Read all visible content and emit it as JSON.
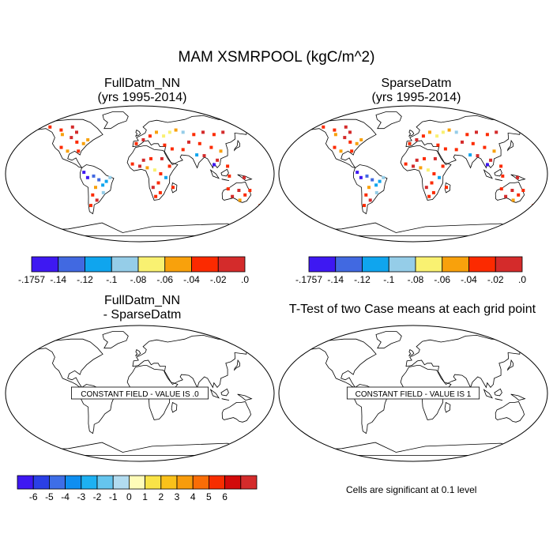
{
  "figure": {
    "title": "MAM XSMRPOOL (kgC/m^2)"
  },
  "panels": [
    {
      "title_line1": "FullDatm_NN",
      "title_line2": "(yrs 1995-2014)"
    },
    {
      "title_line1": "SparseDatm",
      "title_line2": "(yrs 1995-2014)"
    },
    {
      "title_line1": "FullDatm_NN",
      "title_line2": "- SparseDatm",
      "message": "CONSTANT FIELD - VALUE IS .0"
    },
    {
      "title_line1": "T-Test of two Case means at each grid point",
      "message": "CONSTANT FIELD - VALUE IS 1"
    }
  ],
  "colorbar_top": {
    "colors": [
      "#3e18f2",
      "#4169e1",
      "#0fa5ee",
      "#95cde8",
      "#f9f171",
      "#f8a10c",
      "#fc2a00",
      "#d42b2b"
    ],
    "labels": [
      "-.1757",
      "-.14",
      "-.12",
      "-.1",
      "-.08",
      "-.06",
      "-.04",
      "-.02",
      ".0"
    ]
  },
  "colorbar_bottom": {
    "colors": [
      "#3e18f2",
      "#2a3fe6",
      "#3e6ee7",
      "#0e8ef0",
      "#1db1f2",
      "#65c5ee",
      "#b2dcf0",
      "#fffcb8",
      "#f9e347",
      "#f9c11a",
      "#f89c0c",
      "#f96d06",
      "#f72d00",
      "#d20a0a",
      "#d42b2b"
    ],
    "labels": [
      "-6",
      "-5",
      "-4",
      "-3",
      "-2",
      "-1",
      "0",
      "1",
      "2",
      "3",
      "4",
      "5",
      "6"
    ]
  },
  "footnote": "Cells are significant at 0.1 level",
  "chart_data": [
    {
      "type": "heatmap",
      "title": "FullDatm_NN (yrs 1995-2014)",
      "projection": "Robinson",
      "levels": [
        -0.1757,
        -0.14,
        -0.12,
        -0.1,
        -0.08,
        -0.06,
        -0.04,
        -0.02,
        0.0
      ],
      "points": [
        [
          -120,
          58,
          -0.03
        ],
        [
          -115,
          52,
          -0.05
        ],
        [
          -100,
          48,
          -0.01
        ],
        [
          -90,
          42,
          -0.03
        ],
        [
          -80,
          40,
          -0.06
        ],
        [
          -75,
          45,
          -0.05
        ],
        [
          -110,
          35,
          -0.03
        ],
        [
          -100,
          30,
          -0.05
        ],
        [
          -85,
          30,
          -0.03
        ],
        [
          -105,
          62,
          -0.02
        ],
        [
          -140,
          62,
          -0.03
        ],
        [
          -95,
          55,
          -0.02
        ],
        [
          -70,
          -5,
          -0.17
        ],
        [
          -62,
          -3,
          -0.14
        ],
        [
          -55,
          -8,
          -0.13
        ],
        [
          -50,
          -15,
          -0.11
        ],
        [
          -45,
          -10,
          -0.12
        ],
        [
          -60,
          -18,
          -0.05
        ],
        [
          -65,
          -28,
          -0.03
        ],
        [
          -60,
          -35,
          -0.02
        ],
        [
          -70,
          -42,
          -0.03
        ],
        [
          -50,
          -25,
          -0.09
        ],
        [
          -75,
          2,
          -0.15
        ],
        [
          -40,
          -5,
          -0.1
        ],
        [
          -5,
          40,
          -0.03
        ],
        [
          5,
          45,
          -0.02
        ],
        [
          15,
          50,
          -0.03
        ],
        [
          25,
          55,
          -0.05
        ],
        [
          35,
          50,
          -0.07
        ],
        [
          45,
          55,
          -0.08
        ],
        [
          55,
          58,
          -0.06
        ],
        [
          65,
          55,
          -0.09
        ],
        [
          80,
          52,
          -0.03
        ],
        [
          95,
          55,
          -0.02
        ],
        [
          110,
          52,
          -0.03
        ],
        [
          125,
          55,
          -0.02
        ],
        [
          70,
          42,
          -0.02
        ],
        [
          85,
          40,
          -0.03
        ],
        [
          100,
          35,
          -0.03
        ],
        [
          112,
          30,
          -0.05
        ],
        [
          78,
          25,
          -0.11
        ],
        [
          88,
          24,
          -0.02
        ],
        [
          60,
          32,
          -0.03
        ],
        [
          45,
          33,
          -0.04
        ],
        [
          35,
          38,
          -0.03
        ],
        [
          105,
          18,
          -0.02
        ],
        [
          100,
          12,
          -0.16
        ],
        [
          118,
          10,
          -0.03
        ],
        [
          -10,
          13,
          -0.03
        ],
        [
          0,
          10,
          -0.02
        ],
        [
          10,
          8,
          -0.06
        ],
        [
          20,
          5,
          -0.07
        ],
        [
          28,
          0,
          -0.04
        ],
        [
          35,
          -5,
          -0.12
        ],
        [
          25,
          -12,
          -0.03
        ],
        [
          18,
          -18,
          -0.02
        ],
        [
          28,
          -25,
          -0.03
        ],
        [
          22,
          -30,
          -0.03
        ],
        [
          40,
          10,
          -0.03
        ],
        [
          45,
          -18,
          -0.03
        ],
        [
          5,
          18,
          -0.02
        ],
        [
          15,
          20,
          -0.03
        ],
        [
          30,
          20,
          -0.02
        ],
        [
          120,
          -20,
          -0.03
        ],
        [
          135,
          -22,
          -0.02
        ],
        [
          145,
          -28,
          -0.03
        ],
        [
          140,
          -35,
          -0.05
        ],
        [
          128,
          -30,
          -0.02
        ],
        [
          150,
          -22,
          -0.04
        ],
        [
          140,
          -5,
          -0.02
        ],
        [
          120,
          -3,
          -0.03
        ],
        [
          172,
          -42,
          -0.03
        ]
      ]
    },
    {
      "type": "heatmap",
      "title": "SparseDatm (yrs 1995-2014)",
      "projection": "Robinson",
      "levels": [
        -0.1757,
        -0.14,
        -0.12,
        -0.1,
        -0.08,
        -0.06,
        -0.04,
        -0.02,
        0.0
      ],
      "points": [
        [
          -120,
          58,
          -0.03
        ],
        [
          -115,
          52,
          -0.05
        ],
        [
          -100,
          48,
          -0.01
        ],
        [
          -90,
          42,
          -0.03
        ],
        [
          -80,
          40,
          -0.06
        ],
        [
          -75,
          45,
          -0.05
        ],
        [
          -110,
          35,
          -0.03
        ],
        [
          -100,
          30,
          -0.05
        ],
        [
          -85,
          30,
          -0.03
        ],
        [
          -105,
          62,
          -0.02
        ],
        [
          -140,
          62,
          -0.03
        ],
        [
          -95,
          55,
          -0.02
        ],
        [
          -70,
          -5,
          -0.17
        ],
        [
          -62,
          -3,
          -0.14
        ],
        [
          -55,
          -8,
          -0.13
        ],
        [
          -50,
          -15,
          -0.11
        ],
        [
          -45,
          -10,
          -0.12
        ],
        [
          -60,
          -18,
          -0.05
        ],
        [
          -65,
          -28,
          -0.03
        ],
        [
          -60,
          -35,
          -0.02
        ],
        [
          -70,
          -42,
          -0.03
        ],
        [
          -50,
          -25,
          -0.09
        ],
        [
          -75,
          2,
          -0.15
        ],
        [
          -40,
          -5,
          -0.1
        ],
        [
          -5,
          40,
          -0.03
        ],
        [
          5,
          45,
          -0.02
        ],
        [
          15,
          50,
          -0.03
        ],
        [
          25,
          55,
          -0.05
        ],
        [
          35,
          50,
          -0.07
        ],
        [
          45,
          55,
          -0.08
        ],
        [
          55,
          58,
          -0.06
        ],
        [
          65,
          55,
          -0.09
        ],
        [
          80,
          52,
          -0.03
        ],
        [
          95,
          55,
          -0.02
        ],
        [
          110,
          52,
          -0.03
        ],
        [
          125,
          55,
          -0.02
        ],
        [
          70,
          42,
          -0.02
        ],
        [
          85,
          40,
          -0.03
        ],
        [
          100,
          35,
          -0.03
        ],
        [
          112,
          30,
          -0.05
        ],
        [
          78,
          25,
          -0.11
        ],
        [
          88,
          24,
          -0.02
        ],
        [
          60,
          32,
          -0.03
        ],
        [
          45,
          33,
          -0.04
        ],
        [
          35,
          38,
          -0.03
        ],
        [
          105,
          18,
          -0.02
        ],
        [
          100,
          12,
          -0.16
        ],
        [
          118,
          10,
          -0.03
        ],
        [
          -10,
          13,
          -0.03
        ],
        [
          0,
          10,
          -0.02
        ],
        [
          10,
          8,
          -0.06
        ],
        [
          20,
          5,
          -0.07
        ],
        [
          28,
          0,
          -0.04
        ],
        [
          35,
          -5,
          -0.12
        ],
        [
          25,
          -12,
          -0.03
        ],
        [
          18,
          -18,
          -0.02
        ],
        [
          28,
          -25,
          -0.03
        ],
        [
          22,
          -30,
          -0.03
        ],
        [
          40,
          10,
          -0.03
        ],
        [
          45,
          -18,
          -0.03
        ],
        [
          5,
          18,
          -0.02
        ],
        [
          15,
          20,
          -0.03
        ],
        [
          30,
          20,
          -0.02
        ],
        [
          120,
          -20,
          -0.03
        ],
        [
          135,
          -22,
          -0.02
        ],
        [
          145,
          -28,
          -0.03
        ],
        [
          140,
          -35,
          -0.05
        ],
        [
          128,
          -30,
          -0.02
        ],
        [
          150,
          -22,
          -0.04
        ],
        [
          140,
          -5,
          -0.02
        ],
        [
          120,
          -3,
          -0.03
        ],
        [
          172,
          -42,
          -0.03
        ]
      ]
    },
    {
      "type": "heatmap",
      "title": "FullDatm_NN - SparseDatm",
      "projection": "Robinson",
      "constant_value": 0.0,
      "levels": [
        -6,
        -5,
        -4,
        -3,
        -2,
        -1,
        0,
        1,
        2,
        3,
        4,
        5,
        6
      ]
    },
    {
      "type": "heatmap",
      "title": "T-Test of two Case means at each grid point",
      "projection": "Robinson",
      "constant_value": 1
    }
  ]
}
